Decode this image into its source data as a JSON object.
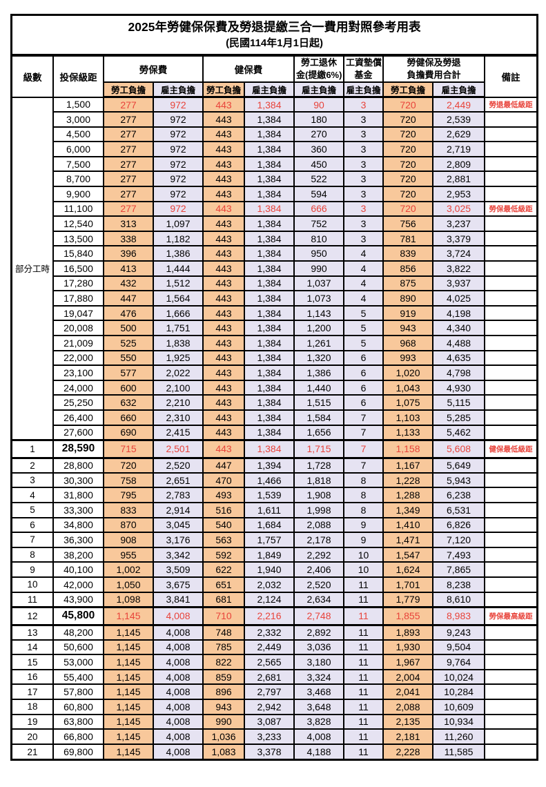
{
  "title": "2025年勞健保保費及勞退提繳三合一費用對照參考用表",
  "subtitle": "(民國114年1月1日起)",
  "colors": {
    "employee_column_bg": "#F8C89B",
    "employer_column_bg": "#E6E3F2",
    "highlight_text": "#E8433A",
    "border": "#000000"
  },
  "header": {
    "level": "級數",
    "bracket": "投保級距",
    "labor_insurance": "勞保費",
    "health_insurance": "健保費",
    "pension_line1": "勞工退休",
    "pension_line2": "金(提繳6%)",
    "wage_fund_line1": "工資墊償",
    "wage_fund_line2": "基金",
    "total_line1": "勞健保及勞退",
    "total_line2": "負擔費用合計",
    "remark": "備註",
    "employee_share": "勞工負擔",
    "employer_share": "雇主負擔"
  },
  "table": {
    "part_time_label": "部分工時",
    "part_time_rowspan": 23,
    "rows": [
      {
        "level": null,
        "bracket": "1,500",
        "labor_emp": "277",
        "labor_er": "972",
        "health_emp": "443",
        "health_er": "1,384",
        "pension_er": "90",
        "fund_er": "3",
        "total_emp": "720",
        "total_er": "2,449",
        "remark": "勞退最低級距",
        "highlight": true,
        "bold": false
      },
      {
        "level": null,
        "bracket": "3,000",
        "labor_emp": "277",
        "labor_er": "972",
        "health_emp": "443",
        "health_er": "1,384",
        "pension_er": "180",
        "fund_er": "3",
        "total_emp": "720",
        "total_er": "2,539",
        "remark": "",
        "highlight": false,
        "bold": false
      },
      {
        "level": null,
        "bracket": "4,500",
        "labor_emp": "277",
        "labor_er": "972",
        "health_emp": "443",
        "health_er": "1,384",
        "pension_er": "270",
        "fund_er": "3",
        "total_emp": "720",
        "total_er": "2,629",
        "remark": "",
        "highlight": false,
        "bold": false
      },
      {
        "level": null,
        "bracket": "6,000",
        "labor_emp": "277",
        "labor_er": "972",
        "health_emp": "443",
        "health_er": "1,384",
        "pension_er": "360",
        "fund_er": "3",
        "total_emp": "720",
        "total_er": "2,719",
        "remark": "",
        "highlight": false,
        "bold": false
      },
      {
        "level": null,
        "bracket": "7,500",
        "labor_emp": "277",
        "labor_er": "972",
        "health_emp": "443",
        "health_er": "1,384",
        "pension_er": "450",
        "fund_er": "3",
        "total_emp": "720",
        "total_er": "2,809",
        "remark": "",
        "highlight": false,
        "bold": false
      },
      {
        "level": null,
        "bracket": "8,700",
        "labor_emp": "277",
        "labor_er": "972",
        "health_emp": "443",
        "health_er": "1,384",
        "pension_er": "522",
        "fund_er": "3",
        "total_emp": "720",
        "total_er": "2,881",
        "remark": "",
        "highlight": false,
        "bold": false
      },
      {
        "level": null,
        "bracket": "9,900",
        "labor_emp": "277",
        "labor_er": "972",
        "health_emp": "443",
        "health_er": "1,384",
        "pension_er": "594",
        "fund_er": "3",
        "total_emp": "720",
        "total_er": "2,953",
        "remark": "",
        "highlight": false,
        "bold": false
      },
      {
        "level": null,
        "bracket": "11,100",
        "labor_emp": "277",
        "labor_er": "972",
        "health_emp": "443",
        "health_er": "1,384",
        "pension_er": "666",
        "fund_er": "3",
        "total_emp": "720",
        "total_er": "3,025",
        "remark": "勞保最低級距",
        "highlight": true,
        "bold": false
      },
      {
        "level": null,
        "bracket": "12,540",
        "labor_emp": "313",
        "labor_er": "1,097",
        "health_emp": "443",
        "health_er": "1,384",
        "pension_er": "752",
        "fund_er": "3",
        "total_emp": "756",
        "total_er": "3,237",
        "remark": "",
        "highlight": false,
        "bold": false
      },
      {
        "level": null,
        "bracket": "13,500",
        "labor_emp": "338",
        "labor_er": "1,182",
        "health_emp": "443",
        "health_er": "1,384",
        "pension_er": "810",
        "fund_er": "3",
        "total_emp": "781",
        "total_er": "3,379",
        "remark": "",
        "highlight": false,
        "bold": false
      },
      {
        "level": null,
        "bracket": "15,840",
        "labor_emp": "396",
        "labor_er": "1,386",
        "health_emp": "443",
        "health_er": "1,384",
        "pension_er": "950",
        "fund_er": "4",
        "total_emp": "839",
        "total_er": "3,724",
        "remark": "",
        "highlight": false,
        "bold": false
      },
      {
        "level": null,
        "bracket": "16,500",
        "labor_emp": "413",
        "labor_er": "1,444",
        "health_emp": "443",
        "health_er": "1,384",
        "pension_er": "990",
        "fund_er": "4",
        "total_emp": "856",
        "total_er": "3,822",
        "remark": "",
        "highlight": false,
        "bold": false
      },
      {
        "level": null,
        "bracket": "17,280",
        "labor_emp": "432",
        "labor_er": "1,512",
        "health_emp": "443",
        "health_er": "1,384",
        "pension_er": "1,037",
        "fund_er": "4",
        "total_emp": "875",
        "total_er": "3,937",
        "remark": "",
        "highlight": false,
        "bold": false
      },
      {
        "level": null,
        "bracket": "17,880",
        "labor_emp": "447",
        "labor_er": "1,564",
        "health_emp": "443",
        "health_er": "1,384",
        "pension_er": "1,073",
        "fund_er": "4",
        "total_emp": "890",
        "total_er": "4,025",
        "remark": "",
        "highlight": false,
        "bold": false
      },
      {
        "level": null,
        "bracket": "19,047",
        "labor_emp": "476",
        "labor_er": "1,666",
        "health_emp": "443",
        "health_er": "1,384",
        "pension_er": "1,143",
        "fund_er": "5",
        "total_emp": "919",
        "total_er": "4,198",
        "remark": "",
        "highlight": false,
        "bold": false
      },
      {
        "level": null,
        "bracket": "20,008",
        "labor_emp": "500",
        "labor_er": "1,751",
        "health_emp": "443",
        "health_er": "1,384",
        "pension_er": "1,200",
        "fund_er": "5",
        "total_emp": "943",
        "total_er": "4,340",
        "remark": "",
        "highlight": false,
        "bold": false
      },
      {
        "level": null,
        "bracket": "21,009",
        "labor_emp": "525",
        "labor_er": "1,838",
        "health_emp": "443",
        "health_er": "1,384",
        "pension_er": "1,261",
        "fund_er": "5",
        "total_emp": "968",
        "total_er": "4,488",
        "remark": "",
        "highlight": false,
        "bold": false
      },
      {
        "level": null,
        "bracket": "22,000",
        "labor_emp": "550",
        "labor_er": "1,925",
        "health_emp": "443",
        "health_er": "1,384",
        "pension_er": "1,320",
        "fund_er": "6",
        "total_emp": "993",
        "total_er": "4,635",
        "remark": "",
        "highlight": false,
        "bold": false
      },
      {
        "level": null,
        "bracket": "23,100",
        "labor_emp": "577",
        "labor_er": "2,022",
        "health_emp": "443",
        "health_er": "1,384",
        "pension_er": "1,386",
        "fund_er": "6",
        "total_emp": "1,020",
        "total_er": "4,798",
        "remark": "",
        "highlight": false,
        "bold": false
      },
      {
        "level": null,
        "bracket": "24,000",
        "labor_emp": "600",
        "labor_er": "2,100",
        "health_emp": "443",
        "health_er": "1,384",
        "pension_er": "1,440",
        "fund_er": "6",
        "total_emp": "1,043",
        "total_er": "4,930",
        "remark": "",
        "highlight": false,
        "bold": false
      },
      {
        "level": null,
        "bracket": "25,250",
        "labor_emp": "632",
        "labor_er": "2,210",
        "health_emp": "443",
        "health_er": "1,384",
        "pension_er": "1,515",
        "fund_er": "6",
        "total_emp": "1,075",
        "total_er": "5,115",
        "remark": "",
        "highlight": false,
        "bold": false
      },
      {
        "level": null,
        "bracket": "26,400",
        "labor_emp": "660",
        "labor_er": "2,310",
        "health_emp": "443",
        "health_er": "1,384",
        "pension_er": "1,584",
        "fund_er": "7",
        "total_emp": "1,103",
        "total_er": "5,285",
        "remark": "",
        "highlight": false,
        "bold": false
      },
      {
        "level": null,
        "bracket": "27,600",
        "labor_emp": "690",
        "labor_er": "2,415",
        "health_emp": "443",
        "health_er": "1,384",
        "pension_er": "1,656",
        "fund_er": "7",
        "total_emp": "1,133",
        "total_er": "5,462",
        "remark": "",
        "highlight": false,
        "bold": false
      },
      {
        "level": "1",
        "bracket": "28,590",
        "labor_emp": "715",
        "labor_er": "2,501",
        "health_emp": "443",
        "health_er": "1,384",
        "pension_er": "1,715",
        "fund_er": "7",
        "total_emp": "1,158",
        "total_er": "5,608",
        "remark": "健保最低級距",
        "highlight": true,
        "bold": true
      },
      {
        "level": "2",
        "bracket": "28,800",
        "labor_emp": "720",
        "labor_er": "2,520",
        "health_emp": "447",
        "health_er": "1,394",
        "pension_er": "1,728",
        "fund_er": "7",
        "total_emp": "1,167",
        "total_er": "5,649",
        "remark": "",
        "highlight": false,
        "bold": false
      },
      {
        "level": "3",
        "bracket": "30,300",
        "labor_emp": "758",
        "labor_er": "2,651",
        "health_emp": "470",
        "health_er": "1,466",
        "pension_er": "1,818",
        "fund_er": "8",
        "total_emp": "1,228",
        "total_er": "5,943",
        "remark": "",
        "highlight": false,
        "bold": false
      },
      {
        "level": "4",
        "bracket": "31,800",
        "labor_emp": "795",
        "labor_er": "2,783",
        "health_emp": "493",
        "health_er": "1,539",
        "pension_er": "1,908",
        "fund_er": "8",
        "total_emp": "1,288",
        "total_er": "6,238",
        "remark": "",
        "highlight": false,
        "bold": false
      },
      {
        "level": "5",
        "bracket": "33,300",
        "labor_emp": "833",
        "labor_er": "2,914",
        "health_emp": "516",
        "health_er": "1,611",
        "pension_er": "1,998",
        "fund_er": "8",
        "total_emp": "1,349",
        "total_er": "6,531",
        "remark": "",
        "highlight": false,
        "bold": false
      },
      {
        "level": "6",
        "bracket": "34,800",
        "labor_emp": "870",
        "labor_er": "3,045",
        "health_emp": "540",
        "health_er": "1,684",
        "pension_er": "2,088",
        "fund_er": "9",
        "total_emp": "1,410",
        "total_er": "6,826",
        "remark": "",
        "highlight": false,
        "bold": false
      },
      {
        "level": "7",
        "bracket": "36,300",
        "labor_emp": "908",
        "labor_er": "3,176",
        "health_emp": "563",
        "health_er": "1,757",
        "pension_er": "2,178",
        "fund_er": "9",
        "total_emp": "1,471",
        "total_er": "7,120",
        "remark": "",
        "highlight": false,
        "bold": false
      },
      {
        "level": "8",
        "bracket": "38,200",
        "labor_emp": "955",
        "labor_er": "3,342",
        "health_emp": "592",
        "health_er": "1,849",
        "pension_er": "2,292",
        "fund_er": "10",
        "total_emp": "1,547",
        "total_er": "7,493",
        "remark": "",
        "highlight": false,
        "bold": false
      },
      {
        "level": "9",
        "bracket": "40,100",
        "labor_emp": "1,002",
        "labor_er": "3,509",
        "health_emp": "622",
        "health_er": "1,940",
        "pension_er": "2,406",
        "fund_er": "10",
        "total_emp": "1,624",
        "total_er": "7,865",
        "remark": "",
        "highlight": false,
        "bold": false
      },
      {
        "level": "10",
        "bracket": "42,000",
        "labor_emp": "1,050",
        "labor_er": "3,675",
        "health_emp": "651",
        "health_er": "2,032",
        "pension_er": "2,520",
        "fund_er": "11",
        "total_emp": "1,701",
        "total_er": "8,238",
        "remark": "",
        "highlight": false,
        "bold": false
      },
      {
        "level": "11",
        "bracket": "43,900",
        "labor_emp": "1,098",
        "labor_er": "3,841",
        "health_emp": "681",
        "health_er": "2,124",
        "pension_er": "2,634",
        "fund_er": "11",
        "total_emp": "1,779",
        "total_er": "8,610",
        "remark": "",
        "highlight": false,
        "bold": false
      },
      {
        "level": "12",
        "bracket": "45,800",
        "labor_emp": "1,145",
        "labor_er": "4,008",
        "health_emp": "710",
        "health_er": "2,216",
        "pension_er": "2,748",
        "fund_er": "11",
        "total_emp": "1,855",
        "total_er": "8,983",
        "remark": "勞保最高級距",
        "highlight": true,
        "bold": true
      },
      {
        "level": "13",
        "bracket": "48,200",
        "labor_emp": "1,145",
        "labor_er": "4,008",
        "health_emp": "748",
        "health_er": "2,332",
        "pension_er": "2,892",
        "fund_er": "11",
        "total_emp": "1,893",
        "total_er": "9,243",
        "remark": "",
        "highlight": false,
        "bold": false
      },
      {
        "level": "14",
        "bracket": "50,600",
        "labor_emp": "1,145",
        "labor_er": "4,008",
        "health_emp": "785",
        "health_er": "2,449",
        "pension_er": "3,036",
        "fund_er": "11",
        "total_emp": "1,930",
        "total_er": "9,504",
        "remark": "",
        "highlight": false,
        "bold": false
      },
      {
        "level": "15",
        "bracket": "53,000",
        "labor_emp": "1,145",
        "labor_er": "4,008",
        "health_emp": "822",
        "health_er": "2,565",
        "pension_er": "3,180",
        "fund_er": "11",
        "total_emp": "1,967",
        "total_er": "9,764",
        "remark": "",
        "highlight": false,
        "bold": false
      },
      {
        "level": "16",
        "bracket": "55,400",
        "labor_emp": "1,145",
        "labor_er": "4,008",
        "health_emp": "859",
        "health_er": "2,681",
        "pension_er": "3,324",
        "fund_er": "11",
        "total_emp": "2,004",
        "total_er": "10,024",
        "remark": "",
        "highlight": false,
        "bold": false
      },
      {
        "level": "17",
        "bracket": "57,800",
        "labor_emp": "1,145",
        "labor_er": "4,008",
        "health_emp": "896",
        "health_er": "2,797",
        "pension_er": "3,468",
        "fund_er": "11",
        "total_emp": "2,041",
        "total_er": "10,284",
        "remark": "",
        "highlight": false,
        "bold": false
      },
      {
        "level": "18",
        "bracket": "60,800",
        "labor_emp": "1,145",
        "labor_er": "4,008",
        "health_emp": "943",
        "health_er": "2,942",
        "pension_er": "3,648",
        "fund_er": "11",
        "total_emp": "2,088",
        "total_er": "10,609",
        "remark": "",
        "highlight": false,
        "bold": false
      },
      {
        "level": "19",
        "bracket": "63,800",
        "labor_emp": "1,145",
        "labor_er": "4,008",
        "health_emp": "990",
        "health_er": "3,087",
        "pension_er": "3,828",
        "fund_er": "11",
        "total_emp": "2,135",
        "total_er": "10,934",
        "remark": "",
        "highlight": false,
        "bold": false
      },
      {
        "level": "20",
        "bracket": "66,800",
        "labor_emp": "1,145",
        "labor_er": "4,008",
        "health_emp": "1,036",
        "health_er": "3,233",
        "pension_er": "4,008",
        "fund_er": "11",
        "total_emp": "2,181",
        "total_er": "11,260",
        "remark": "",
        "highlight": false,
        "bold": false
      },
      {
        "level": "21",
        "bracket": "69,800",
        "labor_emp": "1,145",
        "labor_er": "4,008",
        "health_emp": "1,083",
        "health_er": "3,378",
        "pension_er": "4,188",
        "fund_er": "11",
        "total_emp": "2,228",
        "total_er": "11,585",
        "remark": "",
        "highlight": false,
        "bold": false
      }
    ]
  }
}
